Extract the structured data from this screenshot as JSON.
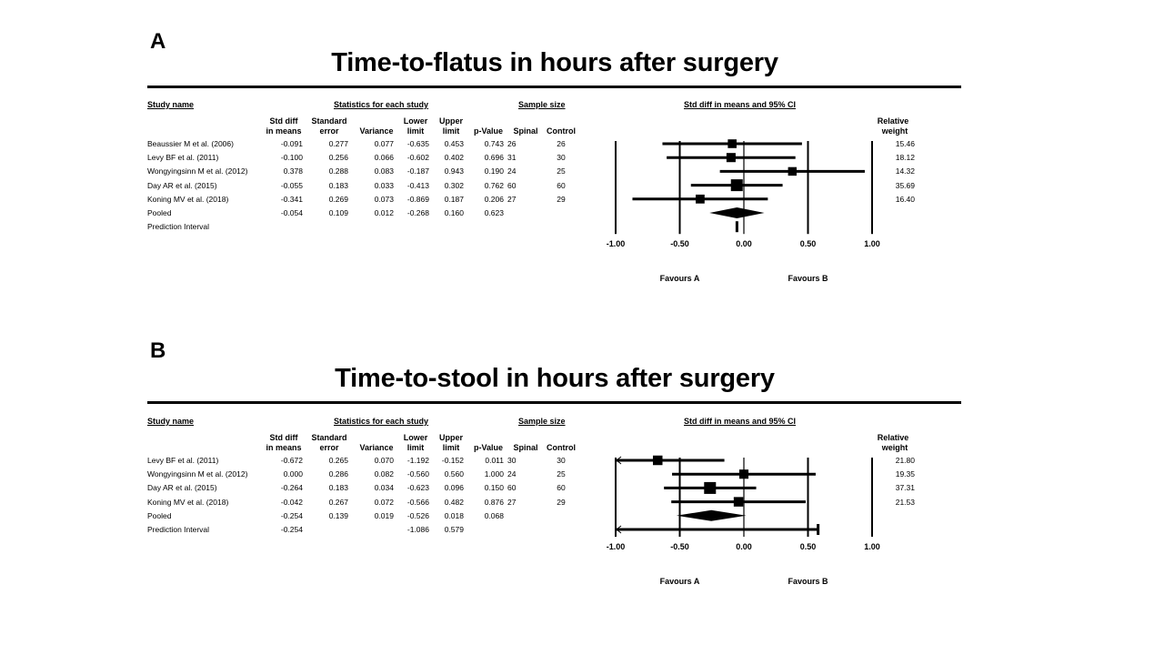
{
  "chart_data": [
    {
      "type": "forest",
      "panel_label": "A",
      "title": "Time-to-flatus in hours after surgery",
      "headers": {
        "study_name": "Study name",
        "statistics_group": "Statistics for each study",
        "sample_size_group": "Sample size",
        "plot_group": "Std diff in means and 95% CI",
        "columns": [
          {
            "line1": "Std diff",
            "line2": "in means"
          },
          {
            "line1": "Standard",
            "line2": "error"
          },
          {
            "line1": "",
            "line2": "Variance"
          },
          {
            "line1": "Lower",
            "line2": "limit"
          },
          {
            "line1": "Upper",
            "line2": "limit"
          },
          {
            "line1": "",
            "line2": "p-Value"
          },
          {
            "line1": "",
            "line2": "Spinal"
          },
          {
            "line1": "",
            "line2": "Control"
          }
        ],
        "relative_weight": {
          "line1": "Relative",
          "line2": "weight"
        }
      },
      "studies": [
        {
          "name": "Beaussier M et al. (2006)",
          "smd": "-0.091",
          "se": "0.277",
          "variance": "0.077",
          "lower": "-0.635",
          "upper": "0.453",
          "p": "0.743",
          "spinal": "26",
          "control": "26",
          "weight": "15.46"
        },
        {
          "name": "Levy BF et al. (2011)",
          "smd": "-0.100",
          "se": "0.256",
          "variance": "0.066",
          "lower": "-0.602",
          "upper": "0.402",
          "p": "0.696",
          "spinal": "31",
          "control": "30",
          "weight": "18.12"
        },
        {
          "name": "Wongyingsinn M et al. (2012)",
          "smd": "0.378",
          "se": "0.288",
          "variance": "0.083",
          "lower": "-0.187",
          "upper": "0.943",
          "p": "0.190",
          "spinal": "24",
          "control": "25",
          "weight": "14.32"
        },
        {
          "name": "Day AR et al. (2015)",
          "smd": "-0.055",
          "se": "0.183",
          "variance": "0.033",
          "lower": "-0.413",
          "upper": "0.302",
          "p": "0.762",
          "spinal": "60",
          "control": "60",
          "weight": "35.69"
        },
        {
          "name": "Koning MV et al. (2018)",
          "smd": "-0.341",
          "se": "0.269",
          "variance": "0.073",
          "lower": "-0.869",
          "upper": "0.187",
          "p": "0.206",
          "spinal": "27",
          "control": "29",
          "weight": "16.40"
        }
      ],
      "pooled": {
        "name": "Pooled",
        "smd": "-0.054",
        "se": "0.109",
        "variance": "0.012",
        "lower": "-0.268",
        "upper": "0.160",
        "p": "0.623"
      },
      "prediction_interval": {
        "name": "Prediction Interval",
        "smd": "",
        "lower": "",
        "upper": "",
        "plot_lower": -0.054,
        "plot_upper": -0.054
      },
      "x_axis": {
        "min": -1.0,
        "max": 1.0,
        "ticks": [
          "-1.00",
          "-0.50",
          "0.00",
          "0.50",
          "1.00"
        ],
        "tick_values": [
          -1.0,
          -0.5,
          0.0,
          0.5,
          1.0
        ]
      },
      "favours": {
        "left": "Favours A",
        "right": "Favours B"
      }
    },
    {
      "type": "forest",
      "panel_label": "B",
      "title": "Time-to-stool in hours after surgery",
      "headers": {
        "study_name": "Study name",
        "statistics_group": "Statistics for each study",
        "sample_size_group": "Sample size",
        "plot_group": "Std diff in means and 95% CI",
        "columns": [
          {
            "line1": "Std diff",
            "line2": "in means"
          },
          {
            "line1": "Standard",
            "line2": "error"
          },
          {
            "line1": "",
            "line2": "Variance"
          },
          {
            "line1": "Lower",
            "line2": "limit"
          },
          {
            "line1": "Upper",
            "line2": "limit"
          },
          {
            "line1": "",
            "line2": "p-Value"
          },
          {
            "line1": "",
            "line2": "Spinal"
          },
          {
            "line1": "",
            "line2": "Control"
          }
        ],
        "relative_weight": {
          "line1": "Relative",
          "line2": "weight"
        }
      },
      "studies": [
        {
          "name": "Levy BF et al. (2011)",
          "smd": "-0.672",
          "se": "0.265",
          "variance": "0.070",
          "lower": "-1.192",
          "upper": "-0.152",
          "p": "0.011",
          "spinal": "30",
          "control": "30",
          "weight": "21.80"
        },
        {
          "name": "Wongyingsinn M et al. (2012)",
          "smd": "0.000",
          "se": "0.286",
          "variance": "0.082",
          "lower": "-0.560",
          "upper": "0.560",
          "p": "1.000",
          "spinal": "24",
          "control": "25",
          "weight": "19.35"
        },
        {
          "name": "Day AR et al. (2015)",
          "smd": "-0.264",
          "se": "0.183",
          "variance": "0.034",
          "lower": "-0.623",
          "upper": "0.096",
          "p": "0.150",
          "spinal": "60",
          "control": "60",
          "weight": "37.31"
        },
        {
          "name": "Koning MV et al. (2018)",
          "smd": "-0.042",
          "se": "0.267",
          "variance": "0.072",
          "lower": "-0.566",
          "upper": "0.482",
          "p": "0.876",
          "spinal": "27",
          "control": "29",
          "weight": "21.53"
        }
      ],
      "pooled": {
        "name": "Pooled",
        "smd": "-0.254",
        "se": "0.139",
        "variance": "0.019",
        "lower": "-0.526",
        "upper": "0.018",
        "p": "0.068"
      },
      "prediction_interval": {
        "name": "Prediction Interval",
        "smd": "-0.254",
        "lower": "-1.086",
        "upper": "0.579",
        "plot_lower": -1.086,
        "plot_upper": 0.579
      },
      "x_axis": {
        "min": -1.0,
        "max": 1.0,
        "ticks": [
          "-1.00",
          "-0.50",
          "0.00",
          "0.50",
          "1.00"
        ],
        "tick_values": [
          -1.0,
          -0.5,
          0.0,
          0.5,
          1.0
        ]
      },
      "favours": {
        "left": "Favours A",
        "right": "Favours B"
      }
    }
  ]
}
